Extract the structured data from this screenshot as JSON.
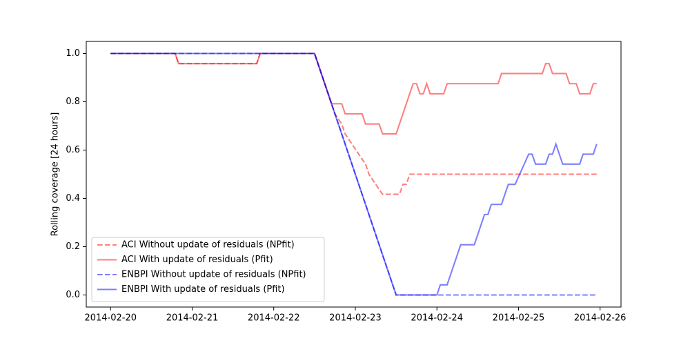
{
  "chart_data": {
    "type": "line",
    "ylabel": "Rolling coverage [24 hours]",
    "xlim": [
      "2014-02-19 16:51",
      "2014-02-26 06:09"
    ],
    "xticks": [
      "2014-02-20",
      "2014-02-21",
      "2014-02-22",
      "2014-02-23",
      "2014-02-24",
      "2014-02-25",
      "2014-02-26"
    ],
    "ylim": [
      -0.05,
      1.05
    ],
    "yticks": [
      {
        "value": 0,
        "label": "0.0"
      },
      0.2,
      0.4,
      0.6,
      0.8,
      {
        "value": 1,
        "label": "1.0"
      }
    ],
    "grid": false,
    "legend": "lower left",
    "alpha": 0.5,
    "series": [
      {
        "name": "ACI Without update of residuals (NPfit)",
        "color": "red",
        "linestyle": "dashed",
        "x": [
          "2014-02-20 00:00",
          "2014-02-20 19:00",
          "2014-02-20 20:00",
          "2014-02-21 19:00",
          "2014-02-21 20:00",
          "2014-02-22 12:00",
          "2014-02-22 17:00",
          "2014-02-22 18:00",
          "2014-02-22 20:00",
          "2014-02-22 21:00",
          "2014-02-22 23:00",
          "2014-02-23 01:00",
          "2014-02-23 03:00",
          "2014-02-23 04:00",
          "2014-02-23 06:00",
          "2014-02-23 08:00",
          "2014-02-23 13:00",
          "2014-02-23 14:00",
          "2014-02-23 15:00",
          "2014-02-23 16:00",
          "2014-02-25 23:00"
        ],
        "values": [
          1,
          1,
          0.958,
          0.958,
          1,
          1,
          0.792,
          0.75,
          0.708,
          0.667,
          0.625,
          0.583,
          0.542,
          0.5,
          0.458,
          0.417,
          0.417,
          0.458,
          0.458,
          0.5,
          0.5
        ]
      },
      {
        "name": "ACI With update of residuals (Pfit)",
        "color": "red",
        "linestyle": "solid",
        "x": [
          "2014-02-20 00:00",
          "2014-02-20 19:00",
          "2014-02-20 20:00",
          "2014-02-21 19:00",
          "2014-02-21 20:00",
          "2014-02-22 12:00",
          "2014-02-22 17:00",
          "2014-02-22 20:00",
          "2014-02-22 21:00",
          "2014-02-23 02:00",
          "2014-02-23 03:00",
          "2014-02-23 07:00",
          "2014-02-23 08:00",
          "2014-02-23 12:00",
          "2014-02-23 17:00",
          "2014-02-23 18:00",
          "2014-02-23 19:00",
          "2014-02-23 20:00",
          "2014-02-23 21:00",
          "2014-02-23 22:00",
          "2014-02-24 02:00",
          "2014-02-24 03:00",
          "2014-02-24 18:00",
          "2014-02-24 19:00",
          "2014-02-25 07:00",
          "2014-02-25 08:00",
          "2014-02-25 09:00",
          "2014-02-25 10:00",
          "2014-02-25 14:00",
          "2014-02-25 15:00",
          "2014-02-25 17:00",
          "2014-02-25 18:00",
          "2014-02-25 21:00",
          "2014-02-25 22:00",
          "2014-02-25 23:00"
        ],
        "values": [
          1,
          1,
          0.958,
          0.958,
          1,
          1,
          0.792,
          0.792,
          0.75,
          0.75,
          0.708,
          0.708,
          0.667,
          0.667,
          0.875,
          0.875,
          0.833,
          0.833,
          0.875,
          0.833,
          0.833,
          0.875,
          0.875,
          0.917,
          0.917,
          0.958,
          0.958,
          0.917,
          0.917,
          0.875,
          0.875,
          0.833,
          0.833,
          0.875,
          0.875
        ]
      },
      {
        "name": "ENBPI Without update of residuals (NPfit)",
        "color": "blue",
        "linestyle": "dashed",
        "x": [
          "2014-02-20 00:00",
          "2014-02-22 12:00",
          "2014-02-23 12:00",
          "2014-02-25 23:00"
        ],
        "values": [
          1,
          1,
          0,
          0
        ]
      },
      {
        "name": "ENBPI With update of residuals (Pfit)",
        "color": "blue",
        "linestyle": "solid",
        "x": [
          "2014-02-20 00:00",
          "2014-02-22 12:00",
          "2014-02-23 12:00",
          "2014-02-24 00:00",
          "2014-02-24 01:00",
          "2014-02-24 03:00",
          "2014-02-24 07:00",
          "2014-02-24 11:00",
          "2014-02-24 14:00",
          "2014-02-24 15:00",
          "2014-02-24 16:00",
          "2014-02-24 19:00",
          "2014-02-24 20:00",
          "2014-02-24 21:00",
          "2014-02-24 23:00",
          "2014-02-25 03:00",
          "2014-02-25 04:00",
          "2014-02-25 05:00",
          "2014-02-25 08:00",
          "2014-02-25 09:00",
          "2014-02-25 10:00",
          "2014-02-25 11:00",
          "2014-02-25 12:00",
          "2014-02-25 13:00",
          "2014-02-25 18:00",
          "2014-02-25 19:00",
          "2014-02-25 22:00",
          "2014-02-25 23:00"
        ],
        "values": [
          1,
          1,
          0,
          0,
          0.042,
          0.042,
          0.208,
          0.208,
          0.333,
          0.333,
          0.375,
          0.375,
          0.417,
          0.458,
          0.458,
          0.583,
          0.583,
          0.542,
          0.542,
          0.583,
          0.583,
          0.625,
          0.583,
          0.542,
          0.542,
          0.583,
          0.583,
          0.625
        ]
      }
    ]
  }
}
